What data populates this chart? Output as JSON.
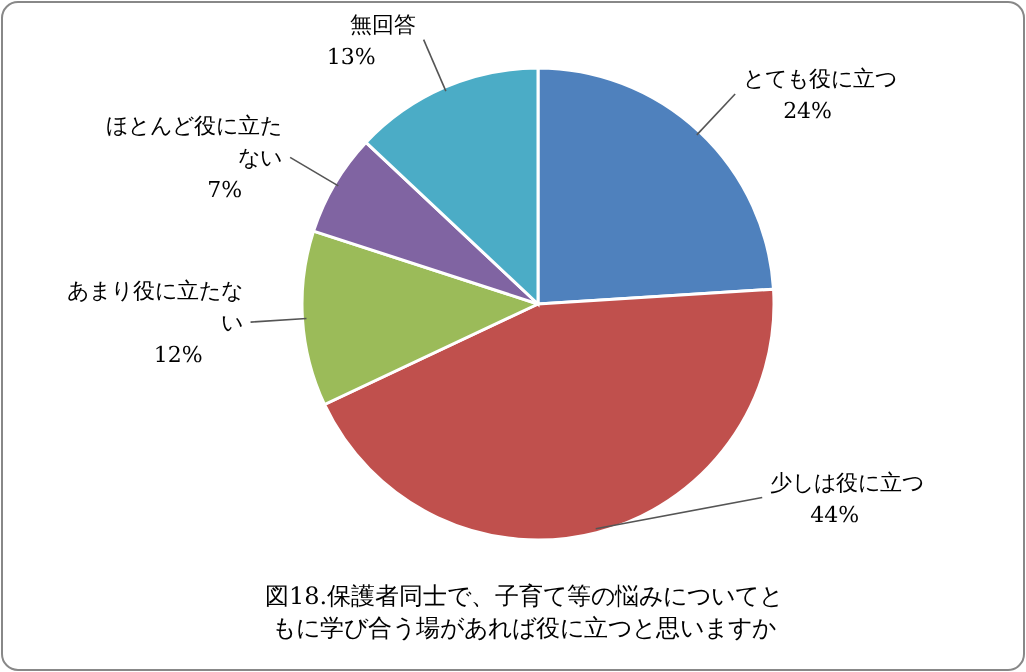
{
  "chart_data": {
    "type": "pie",
    "title": "図18.保護者同士で、子育て等の悩みについてともに学び合う場があれば役に立つと思いますか",
    "categories": [
      "とても役に立つ",
      "少しは役に立つ",
      "あまり役に立たない",
      "ほとんど役に立たない",
      "無回答"
    ],
    "values": [
      24,
      44,
      12,
      7,
      13
    ],
    "value_labels": [
      "24%",
      "44%",
      "12%",
      "7%",
      "13%"
    ],
    "colors": [
      "#4f81bd",
      "#c0504d",
      "#9bbb59",
      "#8064a2",
      "#4bacc6"
    ]
  }
}
